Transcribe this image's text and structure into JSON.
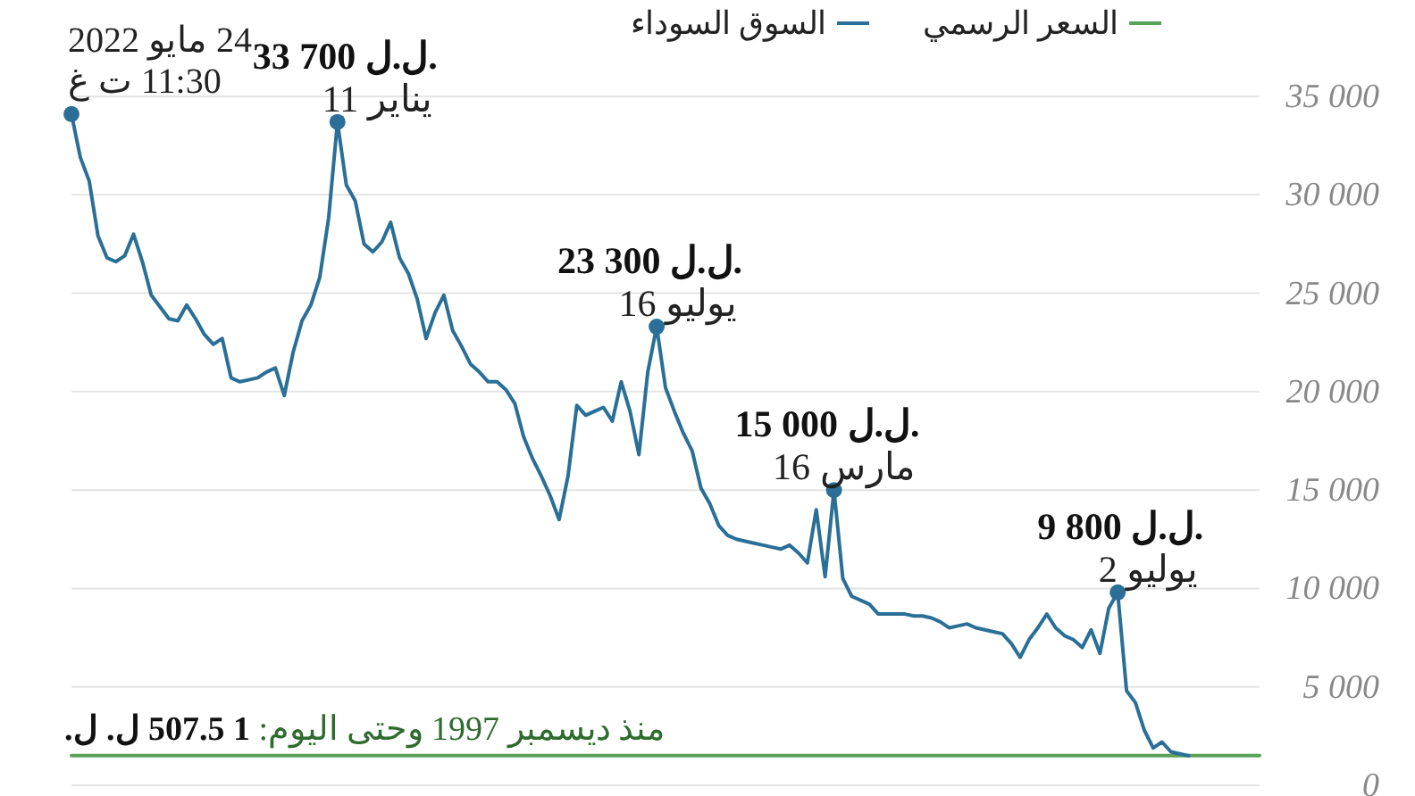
{
  "chart_data": {
    "type": "line",
    "categories": [
      null,
      null,
      null,
      null,
      null,
      null,
      null,
      null,
      null,
      null,
      null,
      null,
      null,
      null,
      null,
      null,
      null,
      null,
      null,
      null,
      null,
      null,
      null,
      null,
      null,
      null,
      null,
      null,
      null,
      null,
      null,
      null,
      null,
      null,
      null,
      null,
      null,
      null,
      null,
      null,
      null,
      null,
      null,
      null,
      null,
      null,
      null,
      null,
      null,
      null,
      null,
      null,
      null,
      null,
      null,
      null,
      null,
      null,
      null,
      null,
      null,
      null,
      null,
      null,
      null,
      null,
      null,
      null,
      null,
      null,
      null,
      null,
      null,
      null,
      null,
      null,
      null,
      null,
      null,
      null,
      null,
      null,
      null,
      null,
      null,
      null,
      null,
      null,
      null,
      null,
      null,
      null,
      null,
      null,
      null,
      null,
      null,
      null,
      null,
      null,
      null,
      null,
      null,
      null,
      null,
      null,
      null,
      null,
      null,
      null,
      null,
      null,
      null,
      null,
      null,
      null,
      null,
      null,
      null,
      null,
      null,
      null,
      null,
      null,
      null,
      null,
      null,
      null,
      null,
      null,
      null,
      null,
      null,
      null,
      null
    ],
    "series": [
      {
        "name": "السوق السوداء",
        "color": "#2a6f97",
        "values": [
          34100,
          31900,
          30700,
          27900,
          26800,
          26600,
          26900,
          28000,
          26600,
          24900,
          24300,
          23700,
          23600,
          24400,
          23700,
          22900,
          22400,
          22700,
          20700,
          20500,
          20600,
          20700,
          21000,
          21200,
          19800,
          22000,
          23600,
          24400,
          25800,
          28800,
          33700,
          30500,
          29700,
          27500,
          27100,
          27600,
          28600,
          26800,
          26000,
          24700,
          22700,
          24000,
          24900,
          23100,
          22300,
          21400,
          21000,
          20500,
          20500,
          20100,
          19400,
          17700,
          16600,
          15700,
          14700,
          13500,
          15700,
          19300,
          18800,
          19000,
          19200,
          18500,
          20500,
          19000,
          16800,
          21000,
          23300,
          20200,
          19000,
          17900,
          17000,
          15100,
          14300,
          13200,
          12700,
          12500,
          12400,
          12300,
          12200,
          12100,
          12000,
          12200,
          11800,
          11300,
          14000,
          10600,
          15000,
          10500,
          9600,
          9400,
          9200,
          8700,
          8700,
          8700,
          8700,
          8600,
          8600,
          8500,
          8300,
          8000,
          8100,
          8200,
          8000,
          7900,
          7800,
          7700,
          7200,
          6500,
          7400,
          8000,
          8700,
          8000,
          7600,
          7400,
          7000,
          7900,
          6700,
          9000,
          9800,
          4800,
          4200,
          2800,
          1900,
          2200,
          1700,
          1600,
          1500,
          null,
          null,
          null,
          null,
          null,
          null,
          null,
          null
        ]
      },
      {
        "name": "السعر الرسمي",
        "color": "#5aa25a",
        "values": [
          1507.5,
          1507.5,
          1507.5,
          1507.5,
          1507.5,
          1507.5,
          1507.5,
          1507.5,
          1507.5,
          1507.5,
          1507.5,
          1507.5,
          1507.5,
          1507.5,
          1507.5,
          1507.5,
          1507.5,
          1507.5,
          1507.5,
          1507.5,
          1507.5,
          1507.5,
          1507.5,
          1507.5,
          1507.5,
          1507.5,
          1507.5,
          1507.5,
          1507.5,
          1507.5,
          1507.5,
          1507.5,
          1507.5,
          1507.5,
          1507.5,
          1507.5,
          1507.5,
          1507.5,
          1507.5,
          1507.5,
          1507.5,
          1507.5,
          1507.5,
          1507.5,
          1507.5,
          1507.5,
          1507.5,
          1507.5,
          1507.5,
          1507.5,
          1507.5,
          1507.5,
          1507.5,
          1507.5,
          1507.5,
          1507.5,
          1507.5,
          1507.5,
          1507.5,
          1507.5,
          1507.5,
          1507.5,
          1507.5,
          1507.5,
          1507.5,
          1507.5,
          1507.5,
          1507.5,
          1507.5,
          1507.5,
          1507.5,
          1507.5,
          1507.5,
          1507.5,
          1507.5,
          1507.5,
          1507.5,
          1507.5,
          1507.5,
          1507.5,
          1507.5,
          1507.5,
          1507.5,
          1507.5,
          1507.5,
          1507.5,
          1507.5,
          1507.5,
          1507.5,
          1507.5,
          1507.5,
          1507.5,
          1507.5,
          1507.5,
          1507.5,
          1507.5,
          1507.5,
          1507.5,
          1507.5,
          1507.5,
          1507.5,
          1507.5,
          1507.5,
          1507.5,
          1507.5,
          1507.5,
          1507.5,
          1507.5,
          1507.5,
          1507.5,
          1507.5,
          1507.5,
          1507.5,
          1507.5,
          1507.5,
          1507.5,
          1507.5,
          1507.5,
          1507.5,
          1507.5,
          1507.5,
          1507.5,
          1507.5,
          1507.5,
          1507.5,
          1507.5,
          1507.5,
          1507.5,
          1507.5,
          1507.5,
          1507.5,
          1507.5,
          1507.5,
          1507.5,
          1507.5
        ]
      }
    ],
    "ylim": [
      0,
      35000
    ],
    "yticks": [
      0,
      {
        "value": 5000,
        "label": "5 000"
      },
      {
        "value": 10000,
        "label": "10 000"
      },
      {
        "value": 15000,
        "label": "15 000"
      },
      {
        "value": 20000,
        "label": "20 000"
      },
      {
        "value": 25000,
        "label": "25 000"
      },
      {
        "value": 30000,
        "label": "30 000"
      },
      {
        "value": 35000,
        "label": "35 000"
      }
    ],
    "grid": "y",
    "legend": "top",
    "annotations": [
      "24 مايو 2022\n11:30 ت غ",
      {
        "text": "33 700 ل.ل.\n11 يناير",
        "y": 33700
      },
      {
        "text": "23 300 ل.ل.\n16 يوليو",
        "y": 23300
      },
      {
        "text": "15 000 ل.ل.\n16 مارس",
        "y": 15000
      },
      {
        "text": "9 800 ل.ل.\n2 يوليو",
        "y": 9800
      },
      {
        "text": "منذ ديسمبر 1997 وحتى اليوم: 1 507.5 ل. ل.",
        "y": 1507.5
      }
    ]
  }
}
